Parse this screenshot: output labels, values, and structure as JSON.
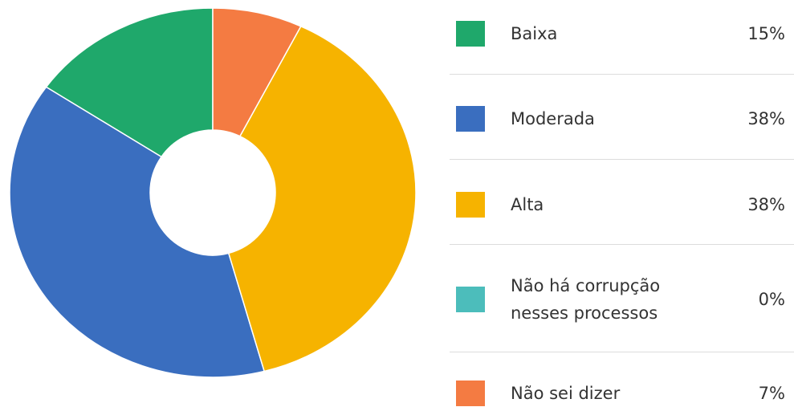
{
  "chart_data": {
    "type": "donut",
    "categories": [
      "Baixa",
      "Moderada",
      "Alta",
      "Não há corrupção nesses processos",
      "Não sei dizer"
    ],
    "values": [
      15,
      38,
      38,
      0,
      7
    ],
    "value_labels": [
      "15%",
      "38%",
      "38%",
      "0%",
      "7%"
    ],
    "colors": [
      "#1fa86b",
      "#3a6ebf",
      "#f6b300",
      "#4cbdbb",
      "#f47b42"
    ]
  }
}
